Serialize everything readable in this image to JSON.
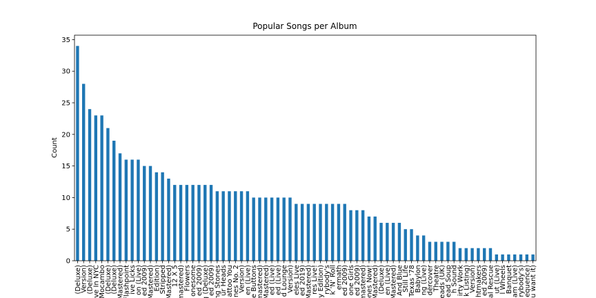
{
  "chart_data": {
    "type": "bar",
    "title": "Popular Songs per Album",
    "ylabel": "Count",
    "color": "#1f77b4",
    "categories": [
      "(Deluxe)",
      "Version)",
      "(Deluxe)",
      "ve In NYC",
      "Mocambo",
      "(Deluxe)",
      "(Deluxe)",
      "Mastered)",
      "Flashpoint",
      "ive Licks",
      "on (Live)",
      "ed 2009)",
      "Mastered)",
      "Edition)",
      "Stripped",
      "Mastered)",
      "12 X 5",
      "mastered)",
      "Flowers",
      "onesome",
      "ed 2009)",
      "ng (Deluxe)",
      "ed 2009)",
      "ng Stones",
      "ur Heads",
      "attoo You",
      "nes No. 2",
      "Version)",
      "en (Live)",
      "e Buttons",
      "mastered)",
      "Mastered)",
      "ed (Live)",
      "ed (Live)",
      "d Lounge",
      "Version)",
      "eles Live",
      "ed 2019)",
      "Mastered)",
      "res Live!",
      "y Edition)",
      "rybody's",
      "k 'N' Roll",
      "ermath",
      "ed 2009)",
      "one Girls",
      "ed 2009)",
      "mastered)",
      "ones Now!",
      "Mastered)",
      "(Deluxe)",
      "en (Live)",
      "Mastered)",
      "And Blue",
      "Still Life",
      "Texas '78",
      "Babylon",
      "ng (Live)",
      "dercover",
      "Theatre",
      "eads (UK)",
      "ead Soup",
      "h Sound",
      "irty Work",
      "k Listing)",
      "Version)",
      "htmakers",
      "ed 2009)",
      "al Rescue",
      "ut (Live)",
      "l Wheels",
      "Banquet",
      "am (Live)",
      "rybody's)",
      "equence)",
      "u want it)"
    ],
    "values": [
      34,
      28,
      24,
      23,
      23,
      21,
      19,
      17,
      16,
      16,
      16,
      15,
      15,
      14,
      14,
      13,
      12,
      12,
      12,
      12,
      12,
      12,
      12,
      11,
      11,
      11,
      11,
      11,
      11,
      10,
      10,
      10,
      10,
      10,
      10,
      10,
      9,
      9,
      9,
      9,
      9,
      9,
      9,
      9,
      9,
      8,
      8,
      8,
      7,
      7,
      6,
      6,
      6,
      6,
      5,
      5,
      4,
      4,
      3,
      3,
      3,
      3,
      3,
      2,
      2,
      2,
      2,
      2,
      2,
      1,
      1,
      1,
      1,
      1,
      1,
      1
    ],
    "ylim": [
      0,
      35.7
    ],
    "yticks": [
      0,
      5,
      10,
      15,
      20,
      25,
      30,
      35
    ]
  }
}
